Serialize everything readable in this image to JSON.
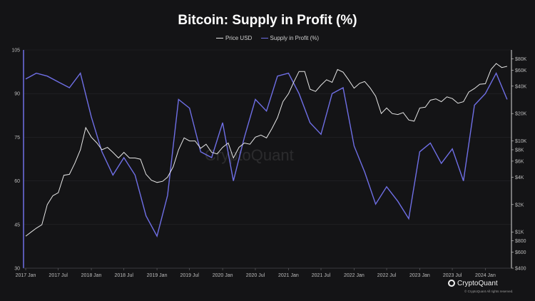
{
  "title": "Bitcoin: Supply in Profit (%)",
  "legend": {
    "price_label": "Price USD",
    "supply_label": "Supply in Profit (%)"
  },
  "brand": {
    "name": "CryptoQuant",
    "copyright": "© CryptoQuant All rights reserved.",
    "watermark": "CryptoQuant"
  },
  "colors": {
    "background": "#141416",
    "price": "#e6e6e6",
    "supply": "#6f6fe6"
  },
  "chart_data": {
    "type": "line",
    "title": "Bitcoin: Supply in Profit (%)",
    "x_ticks": [
      "2017 Jan",
      "2017 Jul",
      "2018 Jan",
      "2018 Jul",
      "2019 Jan",
      "2019 Jul",
      "2020 Jan",
      "2020 Jul",
      "2021 Jan",
      "2021 Jul",
      "2022 Jan",
      "2022 Jul",
      "2023 Jan",
      "2023 Jul",
      "2024 Jan"
    ],
    "y_left": {
      "ticks": [
        30,
        45,
        60,
        75,
        90,
        105
      ],
      "ylim": [
        30,
        105
      ]
    },
    "y_right": {
      "scale": "log",
      "ticks": [
        400,
        600,
        800,
        1000,
        2000,
        4000,
        6000,
        8000,
        10000,
        20000,
        40000,
        60000,
        80000
      ],
      "tick_labels": [
        "$400",
        "$600",
        "$800",
        "$1K",
        "$2K",
        "$4K",
        "$6K",
        "$8K",
        "$10K",
        "$20K",
        "$40K",
        "$60K",
        "$80K"
      ],
      "ylim": [
        400,
        100000
      ]
    },
    "series": [
      {
        "name": "Price USD",
        "axis": "right",
        "x": [
          "2017-01",
          "2017-02",
          "2017-03",
          "2017-04",
          "2017-05",
          "2017-06",
          "2017-07",
          "2017-08",
          "2017-09",
          "2017-10",
          "2017-11",
          "2017-12",
          "2018-01",
          "2018-02",
          "2018-03",
          "2018-04",
          "2018-05",
          "2018-06",
          "2018-07",
          "2018-08",
          "2018-09",
          "2018-10",
          "2018-11",
          "2018-12",
          "2019-01",
          "2019-02",
          "2019-03",
          "2019-04",
          "2019-05",
          "2019-06",
          "2019-07",
          "2019-08",
          "2019-09",
          "2019-10",
          "2019-11",
          "2019-12",
          "2020-01",
          "2020-02",
          "2020-03",
          "2020-04",
          "2020-05",
          "2020-06",
          "2020-07",
          "2020-08",
          "2020-09",
          "2020-10",
          "2020-11",
          "2020-12",
          "2021-01",
          "2021-02",
          "2021-03",
          "2021-04",
          "2021-05",
          "2021-06",
          "2021-07",
          "2021-08",
          "2021-09",
          "2021-10",
          "2021-11",
          "2021-12",
          "2022-01",
          "2022-02",
          "2022-03",
          "2022-04",
          "2022-05",
          "2022-06",
          "2022-07",
          "2022-08",
          "2022-09",
          "2022-10",
          "2022-11",
          "2022-12",
          "2023-01",
          "2023-02",
          "2023-03",
          "2023-04",
          "2023-05",
          "2023-06",
          "2023-07",
          "2023-08",
          "2023-09",
          "2023-10",
          "2023-11",
          "2023-12",
          "2024-01",
          "2024-02",
          "2024-03",
          "2024-04",
          "2024-05"
        ],
        "values": [
          900,
          1000,
          1100,
          1200,
          2000,
          2500,
          2700,
          4200,
          4300,
          5700,
          8000,
          14000,
          11000,
          9500,
          8000,
          8500,
          7500,
          6500,
          7500,
          6500,
          6500,
          6300,
          4300,
          3700,
          3500,
          3600,
          4000,
          5200,
          8000,
          10800,
          10000,
          10000,
          8300,
          9200,
          7500,
          7200,
          8500,
          9500,
          6500,
          8500,
          9500,
          9200,
          11000,
          11600,
          10800,
          13700,
          18000,
          27000,
          33000,
          45000,
          58000,
          58000,
          37000,
          35000,
          41000,
          47000,
          44000,
          61000,
          57000,
          47000,
          38000,
          43000,
          45000,
          38000,
          31000,
          20000,
          23000,
          20000,
          19500,
          20500,
          17000,
          16500,
          23000,
          23500,
          28000,
          29000,
          27000,
          30500,
          29200,
          26000,
          27000,
          34500,
          37700,
          42000,
          42500,
          61000,
          71000,
          64000,
          66000
        ]
      },
      {
        "name": "Supply in Profit (%)",
        "axis": "left",
        "x": [
          "2017-01",
          "2017-03",
          "2017-05",
          "2017-07",
          "2017-09",
          "2017-11",
          "2018-01",
          "2018-03",
          "2018-05",
          "2018-07",
          "2018-09",
          "2018-11",
          "2019-01",
          "2019-03",
          "2019-05",
          "2019-07",
          "2019-09",
          "2019-11",
          "2020-01",
          "2020-03",
          "2020-05",
          "2020-07",
          "2020-09",
          "2020-11",
          "2021-01",
          "2021-03",
          "2021-05",
          "2021-07",
          "2021-09",
          "2021-11",
          "2022-01",
          "2022-03",
          "2022-05",
          "2022-07",
          "2022-09",
          "2022-11",
          "2023-01",
          "2023-03",
          "2023-05",
          "2023-07",
          "2023-09",
          "2023-11",
          "2024-01",
          "2024-03",
          "2024-05"
        ],
        "values": [
          95,
          97,
          96,
          94,
          92,
          97,
          82,
          70,
          62,
          68,
          62,
          48,
          41,
          55,
          88,
          85,
          70,
          68,
          80,
          60,
          75,
          88,
          84,
          96,
          97,
          90,
          80,
          76,
          90,
          92,
          72,
          63,
          52,
          58,
          53,
          47,
          70,
          73,
          66,
          71,
          60,
          86,
          90,
          97,
          88
        ]
      }
    ]
  }
}
